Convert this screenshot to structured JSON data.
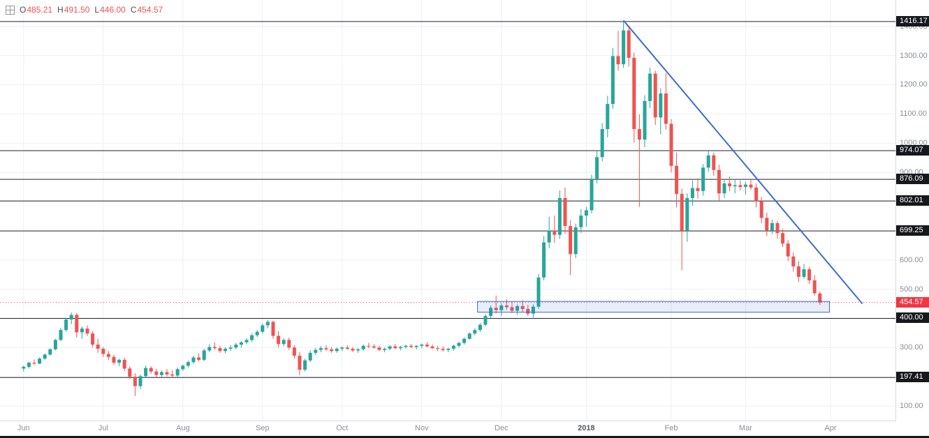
{
  "legend": {
    "items": [
      {
        "label": "O",
        "value": "485.21"
      },
      {
        "label": "H",
        "value": "491.50"
      },
      {
        "label": "L",
        "value": "446.00"
      },
      {
        "label": "C",
        "value": "454.57"
      }
    ]
  },
  "colors": {
    "up": "#26a69a",
    "down": "#ef5350",
    "grid": "#eceff4",
    "level_line": "#1e222d",
    "level_badge_bg": "#16181d",
    "last_price": "#f23645",
    "trendline": "#3b6cd1",
    "zone_border": "#3b6cd1",
    "zone_fill": "rgba(59,108,209,0.12)"
  },
  "price_axis": {
    "gray_labels": [
      "1400.00",
      "1300.00",
      "1200.00",
      "1100.00",
      "1000.00",
      "900.00",
      "600.00",
      "500.00",
      "300.00",
      "100.00"
    ],
    "level_badges": [
      "1416.17",
      "974.07",
      "876.09",
      "802.01",
      "699.25",
      "400.00",
      "197.41"
    ],
    "last_price_badge": "454.57"
  },
  "chart_data": {
    "type": "candlestick",
    "x_unit": "2-day candles, Jun 2017 - Mar 2018",
    "price_range": [
      50,
      1490
    ],
    "grid_step": 100,
    "legend_ohlc": {
      "open": 485.21,
      "high": 491.5,
      "low": 446.0,
      "close": 454.57
    },
    "last_price": 454.57,
    "levels": [
      1416.17,
      974.07,
      876.09,
      802.01,
      699.25,
      400.0,
      197.41
    ],
    "months": [
      {
        "label": "Jun",
        "index": 0
      },
      {
        "label": "Jul",
        "index": 15
      },
      {
        "label": "Aug",
        "index": 30
      },
      {
        "label": "Sep",
        "index": 45
      },
      {
        "label": "Oct",
        "index": 60
      },
      {
        "label": "Nov",
        "index": 75
      },
      {
        "label": "Dec",
        "index": 90
      },
      {
        "label": "2018",
        "index": 106,
        "year": true
      },
      {
        "label": "Feb",
        "index": 122
      },
      {
        "label": "Mar",
        "index": 136
      },
      {
        "label": "Apr",
        "index": 152
      }
    ],
    "trendline": {
      "start": {
        "index": 113,
        "price": 1420
      },
      "end": {
        "index": 158,
        "price": 450
      }
    },
    "zone": {
      "start_index": 86,
      "end_index": 152.3,
      "top_price": 458,
      "bottom_price": 421
    },
    "candles": [
      [
        228,
        238,
        218,
        234
      ],
      [
        234,
        252,
        228,
        248
      ],
      [
        248,
        259,
        240,
        245
      ],
      [
        245,
        266,
        243,
        262
      ],
      [
        262,
        280,
        258,
        276
      ],
      [
        276,
        298,
        272,
        294
      ],
      [
        294,
        330,
        290,
        326
      ],
      [
        326,
        368,
        322,
        360
      ],
      [
        360,
        402,
        354,
        396
      ],
      [
        396,
        420,
        380,
        412
      ],
      [
        412,
        418,
        335,
        352
      ],
      [
        352,
        372,
        330,
        365
      ],
      [
        365,
        376,
        340,
        348
      ],
      [
        348,
        356,
        300,
        310
      ],
      [
        310,
        330,
        282,
        296
      ],
      [
        296,
        302,
        268,
        278
      ],
      [
        278,
        288,
        258,
        268
      ],
      [
        268,
        276,
        240,
        248
      ],
      [
        248,
        262,
        236,
        258
      ],
      [
        258,
        264,
        220,
        228
      ],
      [
        228,
        236,
        192,
        200
      ],
      [
        200,
        212,
        134,
        168
      ],
      [
        168,
        208,
        158,
        202
      ],
      [
        202,
        238,
        196,
        230
      ],
      [
        230,
        236,
        210,
        218
      ],
      [
        218,
        228,
        198,
        206
      ],
      [
        206,
        222,
        200,
        216
      ],
      [
        216,
        226,
        202,
        208
      ],
      [
        208,
        222,
        196,
        204
      ],
      [
        204,
        232,
        200,
        226
      ],
      [
        226,
        242,
        220,
        238
      ],
      [
        238,
        256,
        232,
        250
      ],
      [
        250,
        272,
        244,
        266
      ],
      [
        266,
        280,
        252,
        258
      ],
      [
        258,
        296,
        254,
        290
      ],
      [
        290,
        312,
        284,
        302
      ],
      [
        302,
        318,
        292,
        298
      ],
      [
        298,
        306,
        282,
        288
      ],
      [
        288,
        302,
        280,
        296
      ],
      [
        296,
        308,
        288,
        300
      ],
      [
        300,
        316,
        294,
        310
      ],
      [
        310,
        322,
        300,
        318
      ],
      [
        318,
        332,
        312,
        326
      ],
      [
        326,
        348,
        320,
        342
      ],
      [
        342,
        360,
        336,
        354
      ],
      [
        354,
        382,
        348,
        376
      ],
      [
        376,
        394,
        366,
        388
      ],
      [
        388,
        392,
        330,
        340
      ],
      [
        340,
        356,
        300,
        312
      ],
      [
        312,
        332,
        304,
        326
      ],
      [
        326,
        334,
        292,
        300
      ],
      [
        300,
        308,
        262,
        272
      ],
      [
        272,
        284,
        205,
        224
      ],
      [
        224,
        262,
        218,
        256
      ],
      [
        256,
        290,
        250,
        282
      ],
      [
        282,
        298,
        274,
        292
      ],
      [
        292,
        306,
        284,
        298
      ],
      [
        298,
        308,
        288,
        294
      ],
      [
        294,
        302,
        282,
        288
      ],
      [
        288,
        300,
        282,
        296
      ],
      [
        296,
        304,
        288,
        300
      ],
      [
        300,
        308,
        292,
        296
      ],
      [
        296,
        302,
        284,
        290
      ],
      [
        290,
        298,
        282,
        294
      ],
      [
        294,
        310,
        290,
        306
      ],
      [
        306,
        316,
        298,
        304
      ],
      [
        304,
        312,
        296,
        300
      ],
      [
        300,
        306,
        288,
        292
      ],
      [
        292,
        300,
        284,
        296
      ],
      [
        296,
        308,
        290,
        304
      ],
      [
        304,
        312,
        294,
        298
      ],
      [
        298,
        306,
        290,
        302
      ],
      [
        302,
        310,
        296,
        306
      ],
      [
        306,
        312,
        298,
        302
      ],
      [
        302,
        308,
        294,
        306
      ],
      [
        306,
        314,
        298,
        310
      ],
      [
        310,
        318,
        300,
        304
      ],
      [
        304,
        310,
        294,
        298
      ],
      [
        298,
        306,
        288,
        296
      ],
      [
        296,
        304,
        286,
        292
      ],
      [
        292,
        300,
        284,
        296
      ],
      [
        296,
        310,
        290,
        306
      ],
      [
        306,
        320,
        300,
        316
      ],
      [
        316,
        334,
        310,
        330
      ],
      [
        330,
        352,
        326,
        348
      ],
      [
        348,
        366,
        342,
        360
      ],
      [
        360,
        384,
        354,
        378
      ],
      [
        378,
        414,
        372,
        408
      ],
      [
        408,
        444,
        400,
        436
      ],
      [
        436,
        478,
        416,
        428
      ],
      [
        428,
        452,
        408,
        444
      ],
      [
        444,
        466,
        430,
        438
      ],
      [
        438,
        458,
        418,
        426
      ],
      [
        426,
        448,
        412,
        442
      ],
      [
        442,
        462,
        420,
        432
      ],
      [
        432,
        446,
        408,
        416
      ],
      [
        416,
        448,
        402,
        440
      ],
      [
        440,
        552,
        432,
        540
      ],
      [
        540,
        682,
        530,
        660
      ],
      [
        660,
        748,
        640,
        700
      ],
      [
        700,
        752,
        658,
        686
      ],
      [
        686,
        838,
        672,
        812
      ],
      [
        812,
        848,
        690,
        716
      ],
      [
        716,
        736,
        548,
        620
      ],
      [
        620,
        724,
        606,
        712
      ],
      [
        712,
        774,
        692,
        752
      ],
      [
        752,
        782,
        714,
        770
      ],
      [
        770,
        892,
        760,
        878
      ],
      [
        878,
        972,
        862,
        952
      ],
      [
        952,
        1068,
        938,
        1048
      ],
      [
        1048,
        1162,
        1020,
        1134
      ],
      [
        1134,
        1326,
        1118,
        1298
      ],
      [
        1298,
        1384,
        1248,
        1270
      ],
      [
        1270,
        1416.17,
        1258,
        1386
      ],
      [
        1386,
        1396,
        1262,
        1292
      ],
      [
        1292,
        1310,
        1002,
        1048
      ],
      [
        1048,
        1098,
        782,
        1012
      ],
      [
        1012,
        1164,
        986,
        1144
      ],
      [
        1144,
        1258,
        1120,
        1238
      ],
      [
        1238,
        1248,
        1062,
        1088
      ],
      [
        1088,
        1188,
        1030,
        1170
      ],
      [
        1170,
        1240,
        1046,
        1066
      ],
      [
        1066,
        1082,
        900,
        922
      ],
      [
        922,
        968,
        780,
        826
      ],
      [
        826,
        844,
        565,
        700
      ],
      [
        700,
        828,
        662,
        812
      ],
      [
        812,
        872,
        786,
        846
      ],
      [
        846,
        880,
        810,
        836
      ],
      [
        836,
        928,
        820,
        916
      ],
      [
        916,
        974.07,
        902,
        958
      ],
      [
        958,
        968,
        888,
        908
      ],
      [
        908,
        926,
        802,
        828
      ],
      [
        828,
        876,
        812,
        862
      ],
      [
        862,
        886,
        836,
        852
      ],
      [
        852,
        876.09,
        828,
        856
      ],
      [
        856,
        872,
        838,
        850
      ],
      [
        850,
        868,
        824,
        858
      ],
      [
        858,
        876,
        840,
        848
      ],
      [
        848,
        862,
        780,
        800
      ],
      [
        800,
        816,
        726,
        744
      ],
      [
        744,
        762,
        682,
        700
      ],
      [
        700,
        738,
        688,
        726
      ],
      [
        726,
        734,
        672,
        692
      ],
      [
        692,
        706,
        644,
        656
      ],
      [
        656,
        668,
        596,
        612
      ],
      [
        612,
        626,
        560,
        578
      ],
      [
        578,
        596,
        524,
        542
      ],
      [
        542,
        586,
        536,
        568
      ],
      [
        568,
        576,
        518,
        530
      ],
      [
        530,
        548,
        478,
        486
      ],
      [
        485.21,
        491.5,
        446.0,
        454.57
      ]
    ]
  }
}
